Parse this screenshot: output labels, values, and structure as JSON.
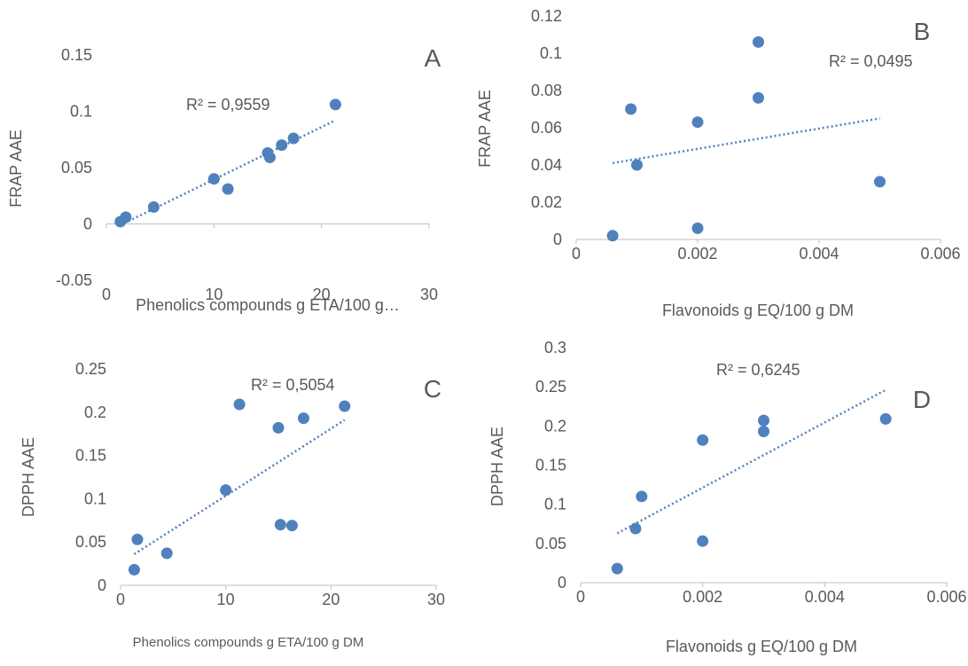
{
  "colors": {
    "marker": "#4f81bd",
    "trendline": "#4f81bd",
    "axis": "#bfbfbf",
    "text": "#595959"
  },
  "chart_data": [
    {
      "id": "A",
      "type": "scatter",
      "panel_label": "A",
      "xlabel": "Phenolics compounds g ETA/100 g…",
      "ylabel": "FRAP AAE",
      "xlim": [
        0,
        30
      ],
      "ylim": [
        -0.05,
        0.15
      ],
      "x_ticks": [
        0,
        10,
        20,
        30
      ],
      "y_ticks": [
        -0.05,
        0,
        0.05,
        0.1,
        0.15
      ],
      "x_tick_labels": [
        "0",
        "10",
        "20",
        "30"
      ],
      "y_tick_labels": [
        "-0.05",
        "0",
        "0.05",
        "0.1",
        "0.15"
      ],
      "series": [
        {
          "x": [
            1.3,
            1.8,
            4.4,
            10.0,
            11.3,
            15.0,
            15.2,
            16.3,
            17.4,
            21.3
          ],
          "y": [
            0.002,
            0.006,
            0.015,
            0.04,
            0.031,
            0.063,
            0.059,
            0.07,
            0.076,
            0.106
          ]
        }
      ],
      "trendline": {
        "type": "linear",
        "x": [
          1.3,
          21.3
        ],
        "y": [
          -0.001,
          0.092
        ],
        "style": "dotted"
      },
      "annotation": "R² = 0,9559",
      "grid": false
    },
    {
      "id": "B",
      "type": "scatter",
      "panel_label": "B",
      "xlabel": "Flavonoids g EQ/100 g DM",
      "ylabel": "FRAP AAE",
      "xlim": [
        0,
        0.006
      ],
      "ylim": [
        0,
        0.12
      ],
      "x_ticks": [
        0,
        0.002,
        0.004,
        0.006
      ],
      "y_ticks": [
        0,
        0.02,
        0.04,
        0.06,
        0.08,
        0.1,
        0.12
      ],
      "x_tick_labels": [
        "0",
        "0.002",
        "0.004",
        "0.006"
      ],
      "y_tick_labels": [
        "0",
        "0.02",
        "0.04",
        "0.06",
        "0.08",
        "0.1",
        "0.12"
      ],
      "series": [
        {
          "x": [
            0.0006,
            0.0009,
            0.001,
            0.002,
            0.002,
            0.003,
            0.003,
            0.005
          ],
          "y": [
            0.002,
            0.07,
            0.04,
            0.063,
            0.006,
            0.106,
            0.076,
            0.031
          ]
        }
      ],
      "trendline": {
        "type": "linear",
        "x": [
          0.0006,
          0.005
        ],
        "y": [
          0.041,
          0.065
        ],
        "style": "dotted"
      },
      "annotation": "R² = 0,0495",
      "grid": false
    },
    {
      "id": "C",
      "type": "scatter",
      "panel_label": "C",
      "xlabel": "Phenolics compounds g ETA/100 g DM",
      "ylabel": "DPPH AAE",
      "xlim": [
        0,
        30
      ],
      "ylim": [
        0,
        0.25
      ],
      "x_ticks": [
        0,
        10,
        20,
        30
      ],
      "y_ticks": [
        0,
        0.05,
        0.1,
        0.15,
        0.2,
        0.25
      ],
      "x_tick_labels": [
        "0",
        "10",
        "20",
        "30"
      ],
      "y_tick_labels": [
        "0",
        "0.05",
        "0.1",
        "0.15",
        "0.2",
        "0.25"
      ],
      "series": [
        {
          "x": [
            1.3,
            1.6,
            4.4,
            10.0,
            11.3,
            15.0,
            15.2,
            16.3,
            17.4,
            21.3
          ],
          "y": [
            0.018,
            0.053,
            0.037,
            0.11,
            0.209,
            0.182,
            0.07,
            0.069,
            0.193,
            0.207
          ]
        }
      ],
      "trendline": {
        "type": "linear",
        "x": [
          1.3,
          21.3
        ],
        "y": [
          0.036,
          0.191
        ],
        "style": "dotted"
      },
      "annotation": "R² = 0,5054",
      "grid": false
    },
    {
      "id": "D",
      "type": "scatter",
      "panel_label": "D",
      "xlabel": "Flavonoids g EQ/100 g DM",
      "ylabel": "DPPH AAE",
      "xlim": [
        0,
        0.006
      ],
      "ylim": [
        0,
        0.3
      ],
      "x_ticks": [
        0,
        0.002,
        0.004,
        0.006
      ],
      "y_ticks": [
        0,
        0.05,
        0.1,
        0.15,
        0.2,
        0.25,
        0.3
      ],
      "x_tick_labels": [
        "0",
        "0.002",
        "0.004",
        "0.006"
      ],
      "y_tick_labels": [
        "0",
        "0.05",
        "0.1",
        "0.15",
        "0.2",
        "0.25",
        "0.3"
      ],
      "series": [
        {
          "x": [
            0.0006,
            0.0009,
            0.001,
            0.002,
            0.002,
            0.003,
            0.003,
            0.005
          ],
          "y": [
            0.018,
            0.069,
            0.11,
            0.182,
            0.053,
            0.207,
            0.193,
            0.209
          ]
        }
      ],
      "trendline": {
        "type": "linear",
        "x": [
          0.0006,
          0.005
        ],
        "y": [
          0.063,
          0.246
        ],
        "style": "dotted"
      },
      "annotation": "R² = 0,6245",
      "grid": false
    }
  ]
}
